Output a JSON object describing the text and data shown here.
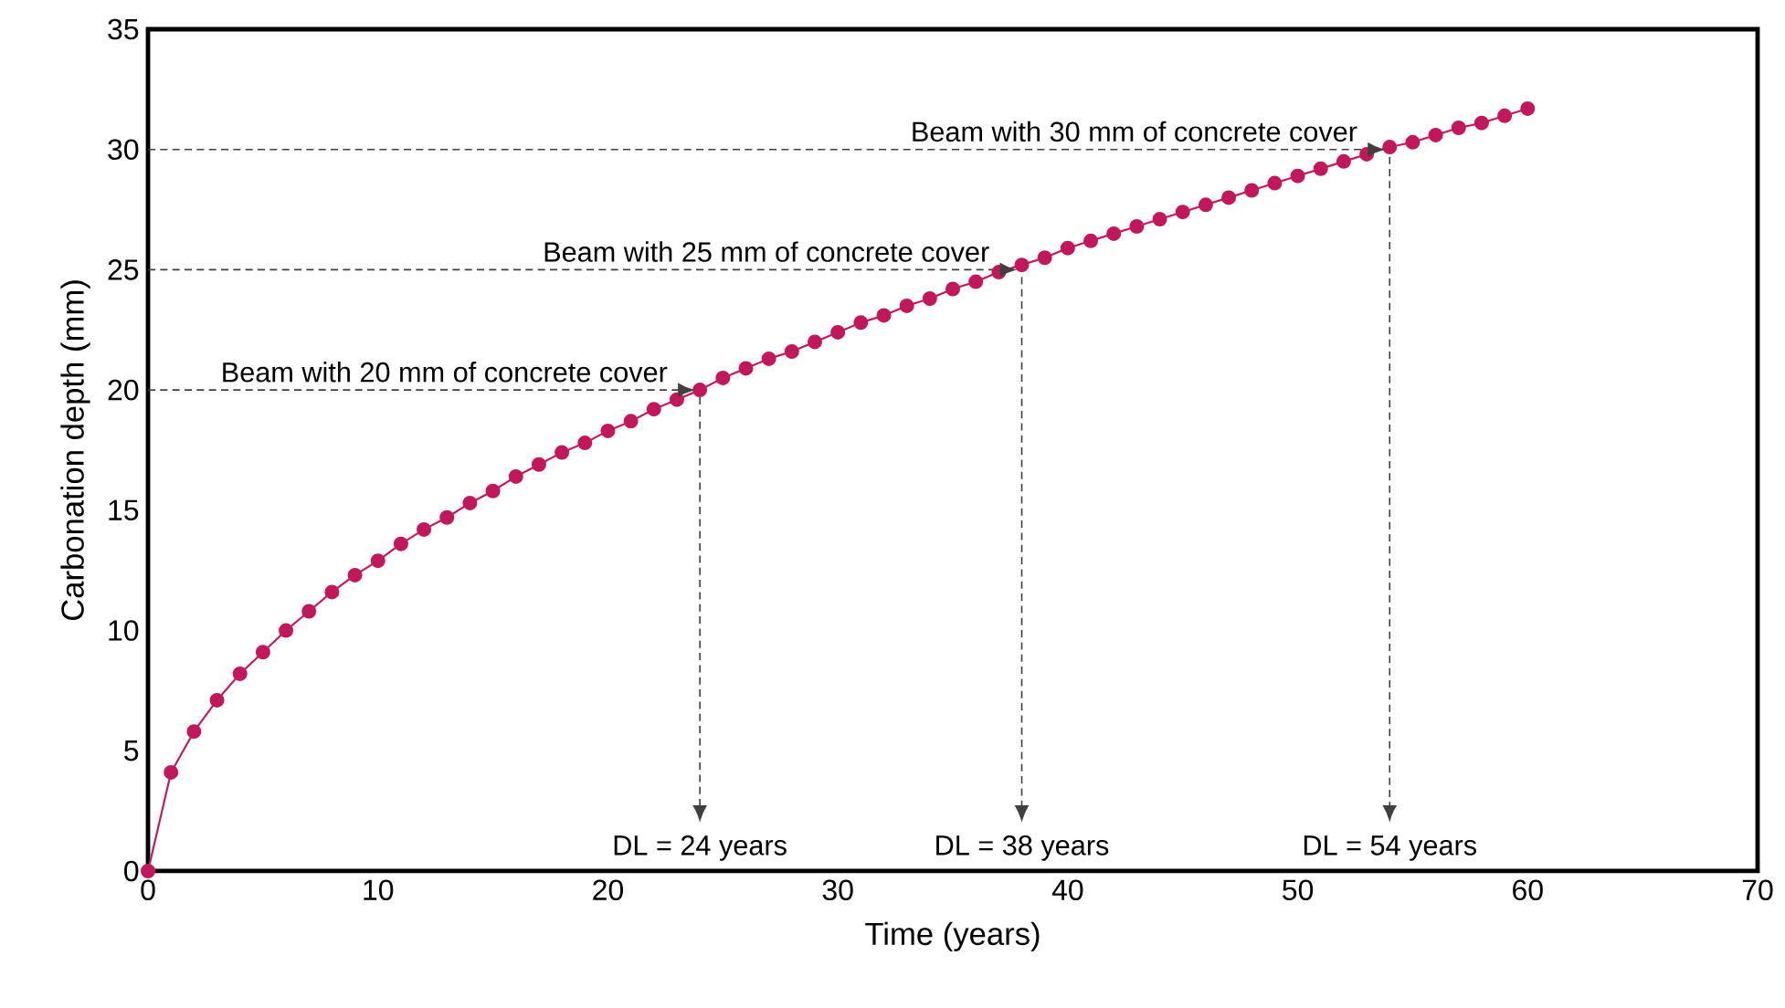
{
  "chart_data": {
    "type": "line",
    "xlabel": "Time (years)",
    "ylabel": "Carbonation depth (mm)",
    "x": [
      0,
      1,
      2,
      3,
      4,
      5,
      6,
      7,
      8,
      9,
      10,
      11,
      12,
      13,
      14,
      15,
      16,
      17,
      18,
      19,
      20,
      21,
      22,
      23,
      24,
      25,
      26,
      27,
      28,
      29,
      30,
      31,
      32,
      33,
      34,
      35,
      36,
      37,
      38,
      39,
      40,
      41,
      42,
      43,
      44,
      45,
      46,
      47,
      48,
      49,
      50,
      51,
      52,
      53,
      54,
      55,
      56,
      57,
      58,
      59,
      60
    ],
    "series": [
      {
        "color": "#c2185b",
        "values": [
          0,
          4.1,
          5.8,
          7.1,
          8.2,
          9.1,
          10.0,
          10.8,
          11.6,
          12.3,
          12.9,
          13.6,
          14.2,
          14.7,
          15.3,
          15.8,
          16.4,
          16.9,
          17.4,
          17.8,
          18.3,
          18.7,
          19.2,
          19.6,
          20.0,
          20.5,
          20.9,
          21.3,
          21.6,
          22.0,
          22.4,
          22.8,
          23.1,
          23.5,
          23.8,
          24.2,
          24.5,
          24.9,
          25.2,
          25.5,
          25.9,
          26.2,
          26.5,
          26.8,
          27.1,
          27.4,
          27.7,
          28.0,
          28.3,
          28.6,
          28.9,
          29.2,
          29.5,
          29.8,
          30.1,
          30.3,
          30.6,
          30.9,
          31.1,
          31.4,
          31.7
        ]
      }
    ],
    "marker": "circle",
    "line_style": "solid",
    "grid": false,
    "xlim": [
      0,
      70
    ],
    "ylim": [
      0,
      35
    ],
    "xticks": [
      0,
      10,
      20,
      30,
      40,
      50,
      60,
      70
    ],
    "yticks": [
      0,
      5,
      10,
      15,
      20,
      25,
      30,
      35
    ],
    "ref_lines": [
      {
        "axis": "y",
        "value": 20,
        "label": "Beam with 20 mm of concrete cover",
        "color": "#404040",
        "line_style": "dashed"
      },
      {
        "axis": "y",
        "value": 25,
        "label": "Beam with 25 mm of concrete cover",
        "color": "#404040",
        "line_style": "dashed"
      },
      {
        "axis": "y",
        "value": 30,
        "label": "Beam with 30 mm of concrete cover",
        "color": "#404040",
        "line_style": "dashed"
      },
      {
        "axis": "x",
        "value": 24,
        "label": "DL = 24 years",
        "color": "#404040",
        "line_style": "dashed"
      },
      {
        "axis": "x",
        "value": 38,
        "label": "DL = 38 years",
        "color": "#404040",
        "line_style": "dashed"
      },
      {
        "axis": "x",
        "value": 54,
        "label": "DL = 54 years",
        "color": "#404040",
        "line_style": "dashed"
      }
    ]
  }
}
